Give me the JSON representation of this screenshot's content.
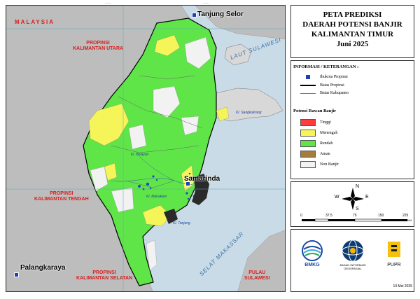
{
  "title": {
    "line1": "PETA PREDIKSI",
    "line2": "DAERAH POTENSI BANJIR",
    "line3": "KALIMANTAN TIMUR",
    "period": "Juni 2025"
  },
  "map_labels": {
    "malaysia": "MALAYSIA",
    "kaltara": "PROPINSI\nKALIMANTAN UTARA",
    "kalteng": "PROPINSI\nKALIMANTAN TENGAH",
    "kalsel": "PROPINSI\nKALIMANTAN SELATAN",
    "sulawesi": "PULAU\nSULAWESI",
    "laut_sulawesi": "LAUT SULAWESI",
    "selat_makassar": "SELAT MAKASSAR",
    "tanjung_selor": "Tanjung Selor",
    "samarinda": "Samarinda",
    "palangkaraya": "Palangkaraya",
    "sangkulirang": "Kl. Sangkulirang",
    "belayan": "Kl. Belayan",
    "mahakam": "Kl. Mahakam",
    "tanjung": "Kl. Tanjung"
  },
  "legend": {
    "info_header": "INFORMASI / KETERANGAN :",
    "info_items": [
      "Ibukota Propinsi",
      "Batas Propinsi",
      "Batas Kabupaten"
    ],
    "flood_header": "Potensi Rawan Banjir",
    "classes": [
      {
        "label": "Tinggi",
        "color": "#ff3b3b"
      },
      {
        "label": "Menengah",
        "color": "#f5f55a"
      },
      {
        "label": "Rendah",
        "color": "#5fe548"
      },
      {
        "label": "Aman",
        "color": "#a67c3c"
      },
      {
        "label": "Non Banjir",
        "color": "#f2f2f2"
      }
    ]
  },
  "compass": {
    "n": "N",
    "s": "S",
    "e": "E",
    "w": "W"
  },
  "scale": {
    "ticks": [
      "0",
      "37.5",
      "75",
      "150",
      "225"
    ],
    "unit": "KM"
  },
  "logos": {
    "bmkg": "BMKG",
    "big_line1": "BADAN INFORMASI",
    "big_line2": "GEOSPASIAL",
    "pupr": "PUPR"
  },
  "date": "10 Mei 2025",
  "colors": {
    "sea": "#c8dbe6",
    "neighbor_land": "#bdbdbd",
    "province_border": "#000000",
    "capital": "#1f3fb5"
  }
}
